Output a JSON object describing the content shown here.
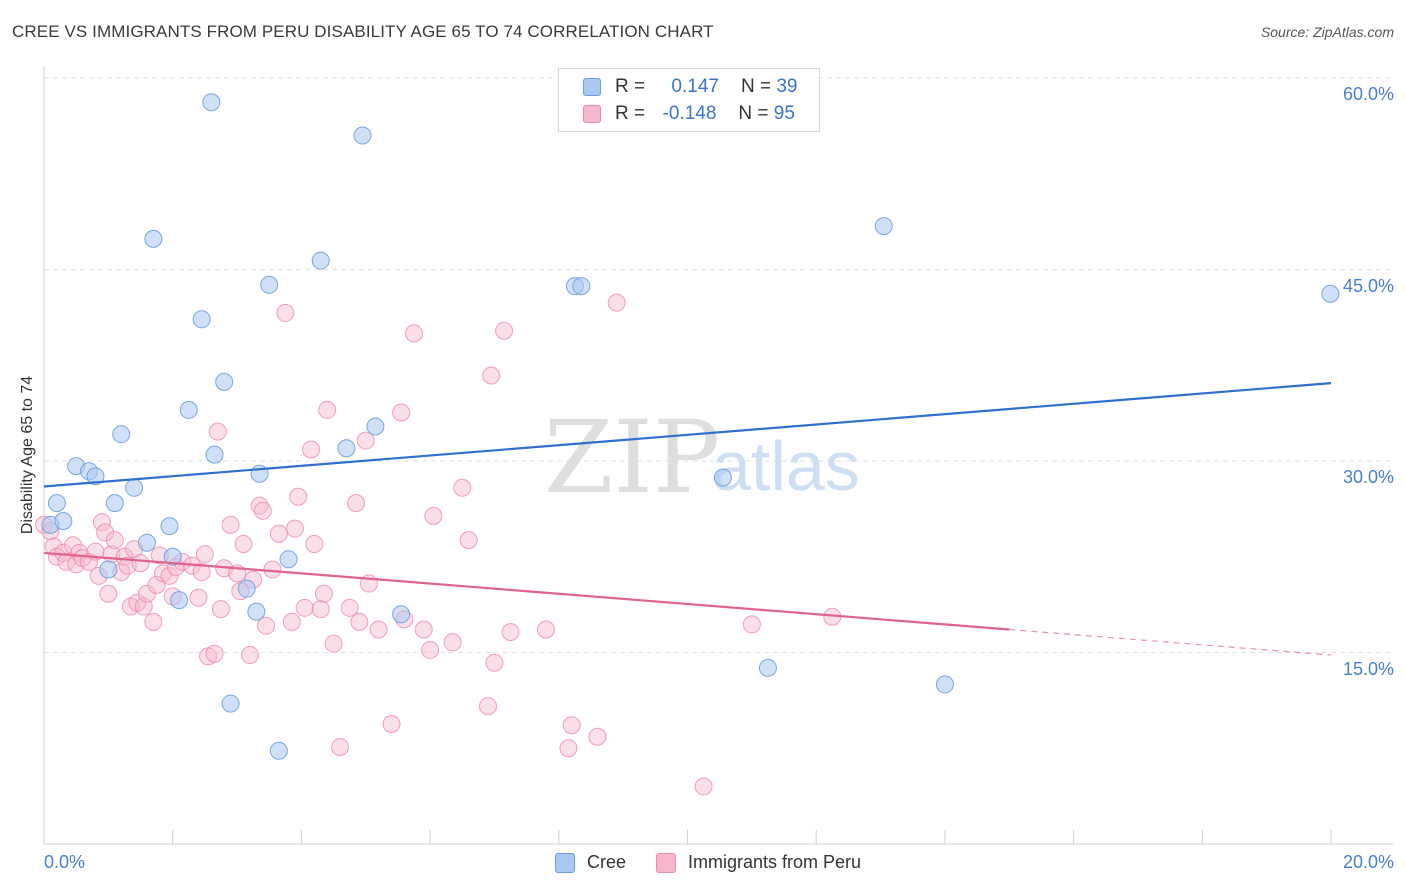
{
  "header": {
    "title": "CREE VS IMMIGRANTS FROM PERU DISABILITY AGE 65 TO 74 CORRELATION CHART",
    "source": "Source: ZipAtlas.com"
  },
  "watermark": {
    "zip": "ZIP",
    "atlas": "atlas"
  },
  "legend_top": {
    "rows": [
      {
        "r_label": "R =",
        "r_value": "0.147",
        "n_label": "N =",
        "n_value": "39"
      },
      {
        "r_label": "R =",
        "r_value": "-0.148",
        "n_label": "N =",
        "n_value": "95"
      }
    ]
  },
  "legend_bottom": {
    "cree": "Cree",
    "peru": "Immigrants from Peru"
  },
  "colors": {
    "cree_fill": "#a9c8f0",
    "cree_stroke": "#6b9de0",
    "cree_line": "#2f6fcf",
    "peru_fill": "#f7b8cd",
    "peru_stroke": "#ec8aab",
    "peru_line": "#e0628f",
    "tick_text": "#4a7fd0",
    "grid": "#e2e2e2"
  },
  "chart_data": {
    "type": "scatter",
    "title": "CREE VS IMMIGRANTS FROM PERU DISABILITY AGE 65 TO 74 CORRELATION CHART",
    "xlabel": "",
    "ylabel": "Disability Age 65 to 74",
    "xlim": [
      0,
      20
    ],
    "ylim": [
      0,
      60
    ],
    "x_tick_labels": [
      "0.0%",
      "20.0%"
    ],
    "y_tick_labels": [
      "15.0%",
      "30.0%",
      "45.0%",
      "60.0%"
    ],
    "y_ticks": [
      15,
      30,
      45,
      60
    ],
    "grid": true,
    "series": [
      {
        "name": "Cree",
        "R": 0.147,
        "N": 39,
        "trend": {
          "x": [
            0,
            20
          ],
          "y": [
            28.0,
            36.1
          ]
        },
        "points": [
          [
            0.1,
            25.0
          ],
          [
            0.2,
            26.7
          ],
          [
            0.3,
            25.3
          ],
          [
            0.5,
            29.6
          ],
          [
            0.7,
            29.2
          ],
          [
            0.8,
            28.8
          ],
          [
            1.0,
            21.5
          ],
          [
            1.1,
            26.7
          ],
          [
            1.2,
            32.1
          ],
          [
            1.4,
            27.9
          ],
          [
            1.6,
            23.6
          ],
          [
            1.7,
            47.4
          ],
          [
            1.95,
            24.9
          ],
          [
            2.1,
            19.1
          ],
          [
            2.25,
            34.0
          ],
          [
            2.45,
            41.1
          ],
          [
            2.6,
            58.1
          ],
          [
            2.65,
            30.5
          ],
          [
            2.8,
            36.2
          ],
          [
            2.9,
            11.0
          ],
          [
            3.15,
            20.0
          ],
          [
            3.3,
            18.2
          ],
          [
            3.35,
            29.0
          ],
          [
            3.5,
            43.8
          ],
          [
            3.65,
            7.3
          ],
          [
            3.8,
            22.3
          ],
          [
            4.3,
            45.7
          ],
          [
            4.7,
            31.0
          ],
          [
            4.95,
            55.5
          ],
          [
            5.15,
            32.7
          ],
          [
            5.55,
            18.0
          ],
          [
            8.25,
            43.7
          ],
          [
            8.35,
            43.7
          ],
          [
            10.55,
            28.7
          ],
          [
            11.25,
            13.8
          ],
          [
            13.05,
            48.4
          ],
          [
            14.0,
            12.5
          ],
          [
            19.99,
            43.1
          ],
          [
            2.0,
            22.5
          ]
        ]
      },
      {
        "name": "Immigrants from Peru",
        "R": -0.148,
        "N": 95,
        "trend": {
          "x": [
            0,
            15
          ],
          "y": [
            22.8,
            16.8
          ]
        },
        "trend_dashed": {
          "x": [
            15,
            20
          ],
          "y": [
            16.8,
            14.8
          ]
        },
        "points": [
          [
            0.0,
            25.0
          ],
          [
            0.1,
            24.5
          ],
          [
            0.15,
            23.3
          ],
          [
            0.2,
            22.5
          ],
          [
            0.3,
            22.8
          ],
          [
            0.35,
            22.1
          ],
          [
            0.45,
            23.4
          ],
          [
            0.5,
            21.9
          ],
          [
            0.55,
            22.8
          ],
          [
            0.6,
            22.4
          ],
          [
            0.7,
            22.1
          ],
          [
            0.8,
            22.9
          ],
          [
            0.85,
            21.0
          ],
          [
            0.9,
            25.2
          ],
          [
            0.95,
            24.4
          ],
          [
            1.0,
            19.6
          ],
          [
            1.05,
            22.7
          ],
          [
            1.1,
            23.8
          ],
          [
            1.2,
            21.3
          ],
          [
            1.25,
            22.5
          ],
          [
            1.3,
            21.8
          ],
          [
            1.35,
            18.6
          ],
          [
            1.4,
            23.1
          ],
          [
            1.45,
            18.9
          ],
          [
            1.5,
            22.0
          ],
          [
            1.55,
            18.6
          ],
          [
            1.6,
            19.6
          ],
          [
            1.7,
            17.4
          ],
          [
            1.75,
            20.3
          ],
          [
            1.8,
            22.6
          ],
          [
            1.85,
            21.2
          ],
          [
            1.95,
            21.0
          ],
          [
            2.0,
            19.4
          ],
          [
            2.05,
            21.7
          ],
          [
            2.15,
            22.1
          ],
          [
            2.3,
            21.8
          ],
          [
            2.4,
            19.3
          ],
          [
            2.45,
            21.3
          ],
          [
            2.5,
            22.7
          ],
          [
            2.55,
            14.7
          ],
          [
            2.65,
            14.9
          ],
          [
            2.7,
            32.3
          ],
          [
            2.75,
            18.4
          ],
          [
            2.8,
            21.6
          ],
          [
            2.9,
            25.0
          ],
          [
            3.0,
            21.2
          ],
          [
            3.05,
            19.8
          ],
          [
            3.1,
            23.5
          ],
          [
            3.2,
            14.8
          ],
          [
            3.25,
            20.7
          ],
          [
            3.35,
            26.5
          ],
          [
            3.4,
            26.1
          ],
          [
            3.45,
            17.1
          ],
          [
            3.55,
            21.5
          ],
          [
            3.65,
            24.3
          ],
          [
            3.75,
            41.6
          ],
          [
            3.85,
            17.4
          ],
          [
            3.9,
            24.7
          ],
          [
            3.95,
            27.2
          ],
          [
            4.05,
            18.5
          ],
          [
            4.15,
            30.9
          ],
          [
            4.2,
            23.5
          ],
          [
            4.3,
            18.4
          ],
          [
            4.35,
            19.6
          ],
          [
            4.4,
            34.0
          ],
          [
            4.5,
            15.7
          ],
          [
            4.6,
            7.6
          ],
          [
            4.75,
            18.5
          ],
          [
            4.85,
            26.7
          ],
          [
            4.9,
            17.4
          ],
          [
            5.0,
            31.6
          ],
          [
            5.05,
            20.4
          ],
          [
            5.2,
            16.8
          ],
          [
            5.4,
            9.4
          ],
          [
            5.55,
            33.8
          ],
          [
            5.6,
            17.6
          ],
          [
            5.75,
            40.0
          ],
          [
            5.9,
            16.8
          ],
          [
            6.0,
            15.2
          ],
          [
            6.05,
            25.7
          ],
          [
            6.35,
            15.8
          ],
          [
            6.5,
            27.9
          ],
          [
            6.6,
            23.8
          ],
          [
            6.9,
            10.8
          ],
          [
            6.95,
            36.7
          ],
          [
            7.0,
            14.2
          ],
          [
            7.15,
            40.2
          ],
          [
            7.25,
            16.6
          ],
          [
            7.8,
            16.8
          ],
          [
            8.15,
            7.5
          ],
          [
            8.2,
            9.3
          ],
          [
            8.6,
            8.4
          ],
          [
            8.9,
            42.4
          ],
          [
            10.25,
            4.5
          ],
          [
            11.0,
            17.2
          ],
          [
            12.25,
            17.8
          ]
        ]
      }
    ]
  }
}
